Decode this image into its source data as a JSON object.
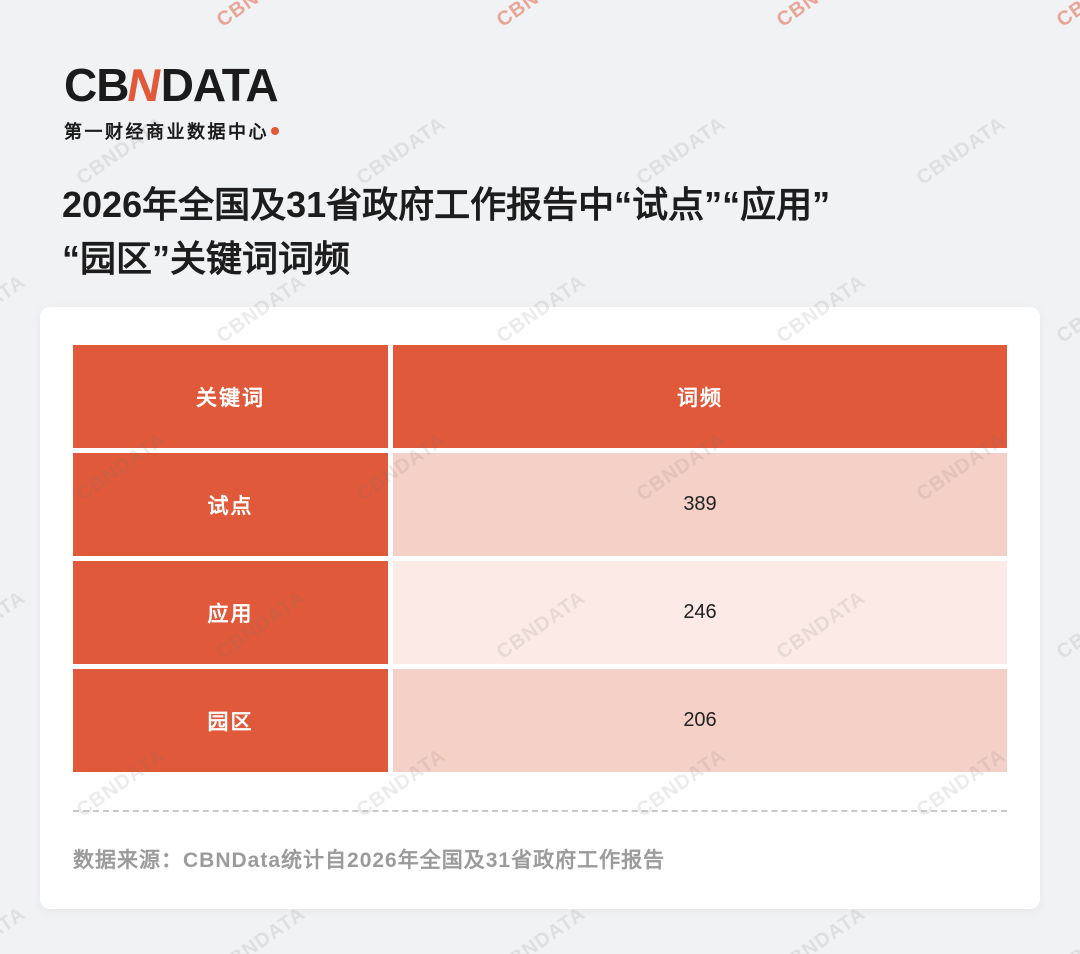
{
  "brand": {
    "logo_cb": "CB",
    "logo_n": "N",
    "logo_data": "DATA",
    "subtitle": "第一财经商业数据中心",
    "accent_color": "#E2583A"
  },
  "title": {
    "line1": "2026年全国及31省政府工作报告中“试点”“应用”",
    "line2": "“园区”关键词词频"
  },
  "chart_data": {
    "type": "table",
    "title": "2026年全国及31省政府工作报告中“试点”“应用”“园区”关键词词频",
    "columns": [
      "关键词",
      "词频"
    ],
    "rows": [
      {
        "keyword": "试点",
        "frequency": 389
      },
      {
        "keyword": "应用",
        "frequency": 246
      },
      {
        "keyword": "园区",
        "frequency": 206
      }
    ],
    "colors": {
      "header_bg": "#E0593B",
      "row_shade_a": "#F5D0C7",
      "row_shade_b": "#FBEAE5"
    }
  },
  "footer": {
    "source": "数据来源：CBNData统计自2026年全国及31省政府工作报告"
  },
  "watermark": {
    "text": "CBNDATA"
  }
}
